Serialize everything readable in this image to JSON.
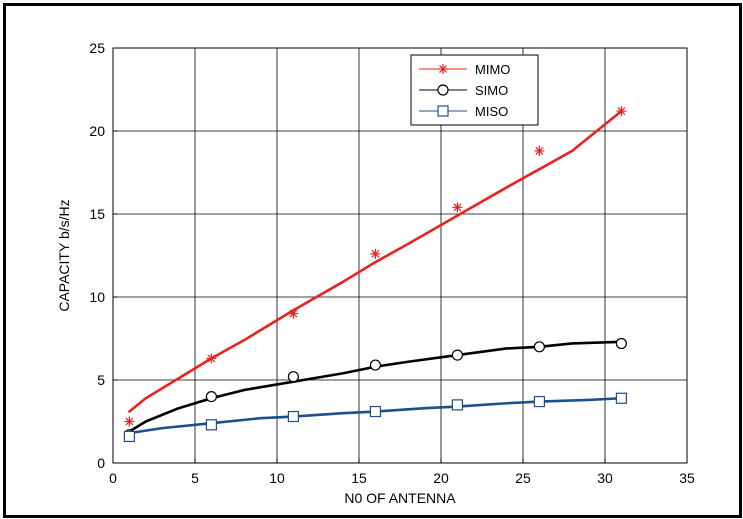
{
  "chart_data": {
    "type": "line",
    "title": "",
    "xlabel": "N0 OF ANTENNA",
    "ylabel": "CAPACITY b/s/Hz",
    "xlim": [
      0,
      35
    ],
    "ylim": [
      0,
      25
    ],
    "xticks": [
      0,
      5,
      10,
      15,
      20,
      25,
      30,
      35
    ],
    "yticks": [
      0,
      5,
      10,
      15,
      20,
      25
    ],
    "grid": true,
    "legend_position": "top-center",
    "series": [
      {
        "name": "MIMO",
        "color": "#e8231f",
        "marker": "asterisk",
        "x": [
          1,
          6,
          11,
          16,
          21,
          26,
          31
        ],
        "y": [
          2.5,
          6.3,
          9.0,
          12.6,
          15.4,
          18.8,
          21.2
        ],
        "curve_x": [
          1,
          2,
          4,
          6,
          8,
          11,
          14,
          16,
          18,
          21,
          24,
          26,
          28,
          31
        ],
        "curve_y": [
          3.1,
          3.9,
          5.1,
          6.3,
          7.4,
          9.2,
          10.9,
          12.1,
          13.2,
          14.9,
          16.6,
          17.7,
          18.8,
          21.2
        ]
      },
      {
        "name": "SIMO",
        "color": "#000000",
        "marker": "circle",
        "x": [
          1,
          6,
          11,
          16,
          21,
          26,
          31
        ],
        "y": [
          1.7,
          4.0,
          5.2,
          5.9,
          6.5,
          7.0,
          7.2
        ],
        "curve_x": [
          1,
          2,
          4,
          6,
          8,
          11,
          14,
          16,
          18,
          21,
          24,
          26,
          28,
          31
        ],
        "curve_y": [
          1.9,
          2.5,
          3.3,
          3.9,
          4.4,
          4.9,
          5.4,
          5.8,
          6.1,
          6.5,
          6.9,
          7.0,
          7.2,
          7.3
        ]
      },
      {
        "name": "MISO",
        "color": "#1f4e8c",
        "marker": "square",
        "x": [
          1,
          6,
          11,
          16,
          21,
          26,
          31
        ],
        "y": [
          1.6,
          2.3,
          2.8,
          3.1,
          3.5,
          3.7,
          3.9
        ],
        "curve_x": [
          1,
          3,
          6,
          9,
          11,
          14,
          16,
          19,
          21,
          24,
          26,
          29,
          31
        ],
        "curve_y": [
          1.8,
          2.1,
          2.4,
          2.7,
          2.8,
          3.0,
          3.1,
          3.3,
          3.4,
          3.6,
          3.7,
          3.8,
          3.9
        ]
      }
    ]
  }
}
